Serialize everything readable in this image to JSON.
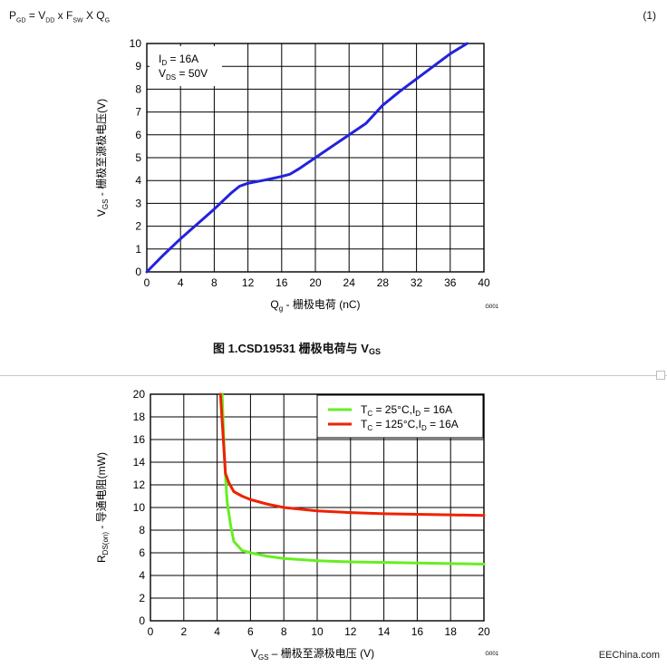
{
  "equation": {
    "text": "P_GD = V_DD x F_SW X Q_G",
    "parts": [
      "P",
      "GD",
      " = V",
      "DD",
      " x F",
      "SW",
      " X Q",
      "G"
    ],
    "number": "(1)"
  },
  "caption": {
    "prefix": "图 1.CSD19531 栅极电荷与 V",
    "subscript": "GS"
  },
  "footer_text": "EEChina.com",
  "chart_data": [
    {
      "type": "line",
      "title": "",
      "xlabel_parts": [
        "Q",
        "g",
        " -  栅极电荷 (nC)"
      ],
      "ylabel_parts": [
        "V",
        "GS",
        " - 栅极至源极电压(V)"
      ],
      "xlim": [
        0,
        40
      ],
      "ylim": [
        0,
        10
      ],
      "xticks": [
        0,
        4,
        8,
        12,
        16,
        20,
        24,
        28,
        32,
        36,
        40
      ],
      "yticks": [
        0,
        1,
        2,
        3,
        4,
        5,
        6,
        7,
        8,
        9,
        10
      ],
      "grid": true,
      "code_label": "G001",
      "annotation_lines": [
        [
          "I",
          "D",
          " = 16A"
        ],
        [
          "V",
          "DS",
          " = 50V"
        ]
      ],
      "color": "#2222dd",
      "series": [
        {
          "x": [
            0,
            2,
            4,
            6,
            8,
            10,
            11,
            12,
            14,
            16,
            17,
            18,
            20,
            22,
            24,
            26,
            28,
            30,
            32,
            34,
            36,
            38
          ],
          "y": [
            0,
            0.75,
            1.45,
            2.1,
            2.75,
            3.45,
            3.75,
            3.88,
            4.02,
            4.18,
            4.28,
            4.5,
            5.0,
            5.5,
            6.0,
            6.5,
            7.3,
            7.9,
            8.45,
            9.0,
            9.55,
            10.0
          ]
        }
      ]
    },
    {
      "type": "line",
      "title": "",
      "xlabel_parts": [
        "V",
        "GS",
        "  –  栅极至源极电压  (V)"
      ],
      "ylabel_parts": [
        "R",
        "DS(on)",
        " - 导通电阻(mW)"
      ],
      "xlim": [
        0,
        20
      ],
      "ylim": [
        0,
        20
      ],
      "xticks": [
        0,
        2,
        4,
        6,
        8,
        10,
        12,
        14,
        16,
        18,
        20
      ],
      "yticks": [
        0,
        2,
        4,
        6,
        8,
        10,
        12,
        14,
        16,
        18,
        20
      ],
      "grid": true,
      "legend_position": "top-right",
      "code_label": "G001",
      "series": [
        {
          "name_parts": [
            "T",
            "C",
            " = 25°C,I",
            "D",
            " = 16A"
          ],
          "color": "#66ee22",
          "x": [
            4.3,
            4.45,
            4.6,
            4.8,
            5.0,
            5.5,
            6.0,
            7.0,
            8.0,
            10.0,
            12.0,
            14.0,
            16.0,
            18.0,
            20.0
          ],
          "y": [
            20.0,
            14.0,
            10.5,
            8.5,
            7.0,
            6.2,
            6.0,
            5.7,
            5.5,
            5.3,
            5.2,
            5.15,
            5.1,
            5.05,
            5.0
          ]
        },
        {
          "name_parts": [
            "T",
            "C",
            " = 125°C,I",
            "D",
            " = 16A"
          ],
          "color": "#ee2200",
          "x": [
            4.2,
            4.35,
            4.5,
            4.7,
            5.0,
            5.5,
            6.0,
            7.0,
            8.0,
            10.0,
            12.0,
            14.0,
            16.0,
            18.0,
            20.0
          ],
          "y": [
            20.0,
            16.5,
            13.0,
            12.2,
            11.4,
            11.0,
            10.7,
            10.3,
            10.0,
            9.7,
            9.55,
            9.45,
            9.4,
            9.35,
            9.3
          ]
        }
      ]
    }
  ]
}
